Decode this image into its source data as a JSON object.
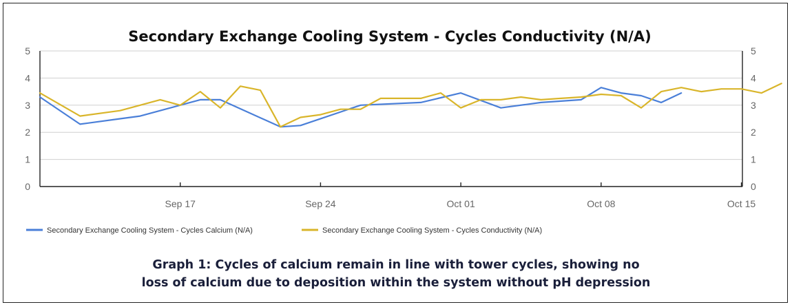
{
  "chart_data": {
    "type": "line",
    "title": "Secondary Exchange Cooling System - Cycles Conductivity (N/A)",
    "xlabel": "",
    "ylabel": "",
    "ylim": [
      0,
      5
    ],
    "xlim": [
      "2023-09-10",
      "2023-10-15"
    ],
    "y_ticks": [
      "0",
      "1",
      "2",
      "3",
      "4",
      "5"
    ],
    "x_ticks": [
      {
        "date": "2023-09-17",
        "label": "Sep 17"
      },
      {
        "date": "2023-09-24",
        "label": "Sep 24"
      },
      {
        "date": "2023-10-01",
        "label": "Oct 01"
      },
      {
        "date": "2023-10-08",
        "label": "Oct 08"
      },
      {
        "date": "2023-10-15",
        "label": "Oct 15"
      }
    ],
    "grid": true,
    "legend_position": "bottom-left",
    "series": [
      {
        "name": "Secondary Exchange Cooling System - Cycles Calcium (N/A)",
        "color": "#4a7fd8",
        "points": [
          {
            "x": "2023-09-10",
            "y": 3.3
          },
          {
            "x": "2023-09-12",
            "y": 2.3
          },
          {
            "x": "2023-09-14",
            "y": 2.5
          },
          {
            "x": "2023-09-15",
            "y": 2.6
          },
          {
            "x": "2023-09-18",
            "y": 3.2
          },
          {
            "x": "2023-09-19",
            "y": 3.2
          },
          {
            "x": "2023-09-22",
            "y": 2.2
          },
          {
            "x": "2023-09-23",
            "y": 2.25
          },
          {
            "x": "2023-09-26",
            "y": 3.0
          },
          {
            "x": "2023-09-29",
            "y": 3.1
          },
          {
            "x": "2023-10-01",
            "y": 3.45
          },
          {
            "x": "2023-10-03",
            "y": 2.9
          },
          {
            "x": "2023-10-05",
            "y": 3.1
          },
          {
            "x": "2023-10-07",
            "y": 3.2
          },
          {
            "x": "2023-10-08",
            "y": 3.65
          },
          {
            "x": "2023-10-09",
            "y": 3.45
          },
          {
            "x": "2023-10-10",
            "y": 3.35
          },
          {
            "x": "2023-10-11",
            "y": 3.1
          },
          {
            "x": "2023-10-12",
            "y": 3.45
          }
        ]
      },
      {
        "name": "Secondary Exchange Cooling System - Cycles Conductivity (N/A)",
        "color": "#d9b52a",
        "points": [
          {
            "x": "2023-09-10",
            "y": 3.45
          },
          {
            "x": "2023-09-12",
            "y": 2.6
          },
          {
            "x": "2023-09-14",
            "y": 2.8
          },
          {
            "x": "2023-09-16",
            "y": 3.2
          },
          {
            "x": "2023-09-17",
            "y": 3.0
          },
          {
            "x": "2023-09-18",
            "y": 3.5
          },
          {
            "x": "2023-09-19",
            "y": 2.9
          },
          {
            "x": "2023-09-20",
            "y": 3.7
          },
          {
            "x": "2023-09-21",
            "y": 3.55
          },
          {
            "x": "2023-09-22",
            "y": 2.2
          },
          {
            "x": "2023-09-23",
            "y": 2.55
          },
          {
            "x": "2023-09-24",
            "y": 2.65
          },
          {
            "x": "2023-09-25",
            "y": 2.85
          },
          {
            "x": "2023-09-26",
            "y": 2.85
          },
          {
            "x": "2023-09-27",
            "y": 3.25
          },
          {
            "x": "2023-09-29",
            "y": 3.25
          },
          {
            "x": "2023-09-30",
            "y": 3.45
          },
          {
            "x": "2023-10-01",
            "y": 2.9
          },
          {
            "x": "2023-10-02",
            "y": 3.2
          },
          {
            "x": "2023-10-03",
            "y": 3.2
          },
          {
            "x": "2023-10-04",
            "y": 3.3
          },
          {
            "x": "2023-10-05",
            "y": 3.2
          },
          {
            "x": "2023-10-06",
            "y": 3.25
          },
          {
            "x": "2023-10-07",
            "y": 3.3
          },
          {
            "x": "2023-10-08",
            "y": 3.4
          },
          {
            "x": "2023-10-09",
            "y": 3.35
          },
          {
            "x": "2023-10-10",
            "y": 2.9
          },
          {
            "x": "2023-10-11",
            "y": 3.5
          },
          {
            "x": "2023-10-12",
            "y": 3.65
          },
          {
            "x": "2023-10-13",
            "y": 3.5
          },
          {
            "x": "2023-10-14",
            "y": 3.6
          },
          {
            "x": "2023-10-15",
            "y": 3.6
          },
          {
            "x": "2023-10-16",
            "y": 3.45
          },
          {
            "x": "2023-10-17",
            "y": 3.8
          }
        ]
      }
    ]
  },
  "caption": {
    "line1": "Graph 1: Cycles of calcium remain in line with tower cycles, showing no",
    "line2": "loss of calcium due to deposition within the system without pH depression"
  }
}
